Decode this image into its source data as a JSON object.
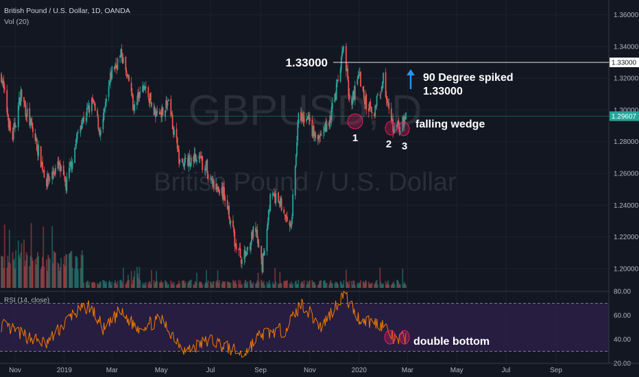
{
  "header": {
    "symbol_line": "British Pound / U.S. Dollar, 1D, OANDA",
    "volume_label": "Vol (20)"
  },
  "watermark": {
    "ticker": "GBPUSD, D",
    "name": "British Pound / U.S. Dollar"
  },
  "rsi_panel": {
    "label": "RSI (14, close)",
    "levels": [
      30,
      70
    ],
    "ylim": [
      20,
      80
    ],
    "ticks": [
      "80.00",
      "60.00",
      "40.00",
      "20.00"
    ]
  },
  "price_axis": {
    "ticks": [
      "1.36000",
      "1.34000",
      "1.32000",
      "1.30000",
      "1.28000",
      "1.26000",
      "1.24000",
      "1.22000",
      "1.20000"
    ],
    "ylim": [
      1.19,
      1.365
    ],
    "marker_resistance": "1.33000",
    "marker_current": "1.29607"
  },
  "time_axis": {
    "ticks": [
      "Nov",
      "2019",
      "Mar",
      "May",
      "Jul",
      "Sep",
      "Nov",
      "2020",
      "Mar",
      "May",
      "Jul",
      "Sep"
    ]
  },
  "annotations": {
    "resistance_label": "1.33000",
    "spike_text_1": "90 Degree spiked",
    "spike_text_2": "1.33000",
    "pattern_text": "falling wedge",
    "rsi_text": "double bottom",
    "point_labels": [
      "1",
      "2",
      "3"
    ]
  },
  "colors": {
    "background": "#131722",
    "up": "#26a69a",
    "down": "#ef5350",
    "rsi_line": "#f57c00",
    "rsi_band": "#2a1f45",
    "marker_current": "#26a69a",
    "circle": "#e91e63",
    "arrow": "#2196f3"
  },
  "chart_data": {
    "type": "candlestick",
    "title": "British Pound / U.S. Dollar, 1D, OANDA",
    "x_range": [
      "2018-10-15",
      "2020-02-28"
    ],
    "y_range": [
      1.19,
      1.365
    ],
    "price_path": [
      {
        "date": "2018-10-15",
        "close": 1.322
      },
      {
        "date": "2018-10-28",
        "close": 1.28
      },
      {
        "date": "2018-11-08",
        "close": 1.31
      },
      {
        "date": "2018-11-25",
        "close": 1.283
      },
      {
        "date": "2018-12-10",
        "close": 1.255
      },
      {
        "date": "2018-12-25",
        "close": 1.265
      },
      {
        "date": "2019-01-03",
        "close": 1.252
      },
      {
        "date": "2019-01-20",
        "close": 1.29
      },
      {
        "date": "2019-02-05",
        "close": 1.305
      },
      {
        "date": "2019-02-15",
        "close": 1.285
      },
      {
        "date": "2019-03-01",
        "close": 1.325
      },
      {
        "date": "2019-03-13",
        "close": 1.335
      },
      {
        "date": "2019-03-28",
        "close": 1.302
      },
      {
        "date": "2019-04-10",
        "close": 1.315
      },
      {
        "date": "2019-04-25",
        "close": 1.296
      },
      {
        "date": "2019-05-10",
        "close": 1.305
      },
      {
        "date": "2019-05-25",
        "close": 1.265
      },
      {
        "date": "2019-06-10",
        "close": 1.27
      },
      {
        "date": "2019-06-25",
        "close": 1.265
      },
      {
        "date": "2019-07-05",
        "close": 1.252
      },
      {
        "date": "2019-07-20",
        "close": 1.245
      },
      {
        "date": "2019-08-01",
        "close": 1.215
      },
      {
        "date": "2019-08-10",
        "close": 1.205
      },
      {
        "date": "2019-08-25",
        "close": 1.225
      },
      {
        "date": "2019-09-03",
        "close": 1.201
      },
      {
        "date": "2019-09-13",
        "close": 1.245
      },
      {
        "date": "2019-09-25",
        "close": 1.242
      },
      {
        "date": "2019-10-08",
        "close": 1.222
      },
      {
        "date": "2019-10-18",
        "close": 1.295
      },
      {
        "date": "2019-10-30",
        "close": 1.293
      },
      {
        "date": "2019-11-10",
        "close": 1.28
      },
      {
        "date": "2019-11-25",
        "close": 1.293
      },
      {
        "date": "2019-12-05",
        "close": 1.315
      },
      {
        "date": "2019-12-13",
        "close": 1.34
      },
      {
        "date": "2019-12-22",
        "close": 1.3
      },
      {
        "date": "2019-12-31",
        "close": 1.325
      },
      {
        "date": "2020-01-08",
        "close": 1.305
      },
      {
        "date": "2020-01-20",
        "close": 1.3
      },
      {
        "date": "2020-01-31",
        "close": 1.32
      },
      {
        "date": "2020-02-10",
        "close": 1.29
      },
      {
        "date": "2020-02-20",
        "close": 1.288
      },
      {
        "date": "2020-02-28",
        "close": 1.296
      }
    ],
    "rsi_path": [
      {
        "date": "2018-10-15",
        "value": 52
      },
      {
        "date": "2018-11-10",
        "value": 44
      },
      {
        "date": "2018-12-10",
        "value": 36
      },
      {
        "date": "2019-01-10",
        "value": 60
      },
      {
        "date": "2019-02-01",
        "value": 68
      },
      {
        "date": "2019-02-20",
        "value": 47
      },
      {
        "date": "2019-03-10",
        "value": 63
      },
      {
        "date": "2019-04-01",
        "value": 50
      },
      {
        "date": "2019-05-01",
        "value": 56
      },
      {
        "date": "2019-06-01",
        "value": 30
      },
      {
        "date": "2019-07-01",
        "value": 40
      },
      {
        "date": "2019-08-10",
        "value": 27
      },
      {
        "date": "2019-09-01",
        "value": 44
      },
      {
        "date": "2019-10-01",
        "value": 48
      },
      {
        "date": "2019-10-22",
        "value": 70
      },
      {
        "date": "2019-11-15",
        "value": 50
      },
      {
        "date": "2019-12-13",
        "value": 78
      },
      {
        "date": "2020-01-01",
        "value": 57
      },
      {
        "date": "2020-02-01",
        "value": 52
      },
      {
        "date": "2020-02-15",
        "value": 38
      },
      {
        "date": "2020-02-28",
        "value": 42
      }
    ],
    "resistance_level": 1.33,
    "current_price": 1.29607
  }
}
